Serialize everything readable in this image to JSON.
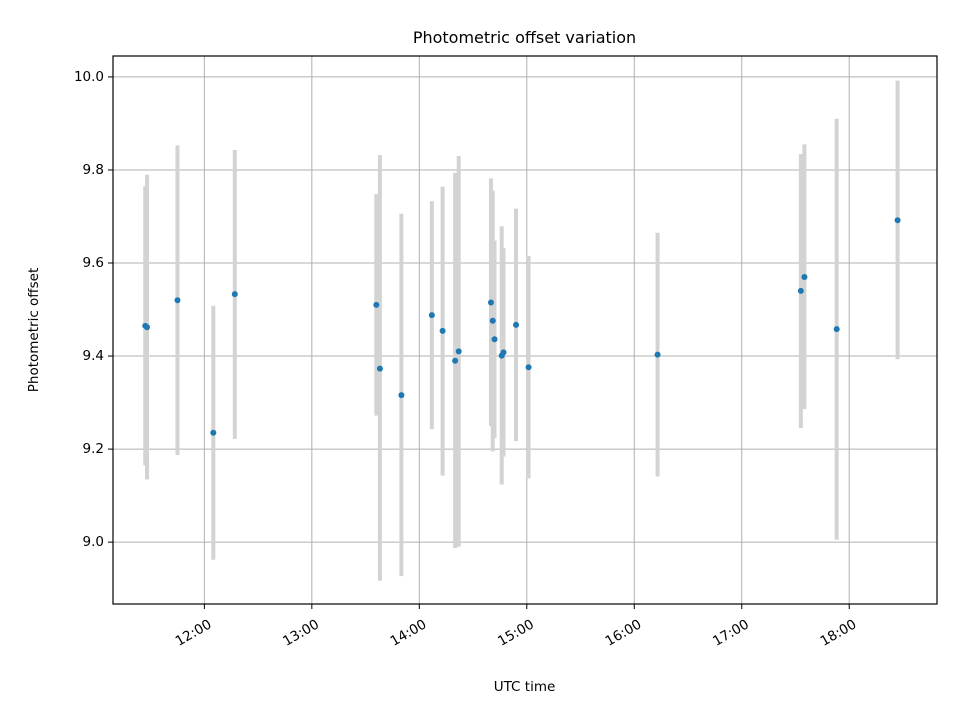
{
  "chart_data": {
    "type": "scatter",
    "title": "Photometric offset variation",
    "xlabel": "UTC time",
    "ylabel": "Photometric offset",
    "x_type": "time",
    "xlim": [
      "11:09",
      "18:49"
    ],
    "ylim": [
      8.867,
      10.045
    ],
    "x_ticks": [
      "12:00",
      "13:00",
      "14:00",
      "15:00",
      "16:00",
      "17:00",
      "18:00"
    ],
    "y_ticks": [
      9.0,
      9.2,
      9.4,
      9.6,
      9.8,
      10.0
    ],
    "grid": true,
    "colors": {
      "point": "#1f77b4",
      "errorbar": "#d3d3d3",
      "grid": "#b0b0b0"
    },
    "points": [
      {
        "x": "11:27",
        "y": 9.465,
        "ylow": 9.165,
        "yhigh": 9.765
      },
      {
        "x": "11:28",
        "y": 9.462,
        "ylow": 9.135,
        "yhigh": 9.79
      },
      {
        "x": "11:45",
        "y": 9.52,
        "ylow": 9.187,
        "yhigh": 9.853
      },
      {
        "x": "12:05",
        "y": 9.235,
        "ylow": 8.962,
        "yhigh": 9.508
      },
      {
        "x": "12:17",
        "y": 9.533,
        "ylow": 9.222,
        "yhigh": 9.843
      },
      {
        "x": "13:36",
        "y": 9.51,
        "ylow": 9.272,
        "yhigh": 9.748
      },
      {
        "x": "13:38",
        "y": 9.373,
        "ylow": 8.917,
        "yhigh": 9.832
      },
      {
        "x": "13:50",
        "y": 9.316,
        "ylow": 8.927,
        "yhigh": 9.706
      },
      {
        "x": "14:07",
        "y": 9.488,
        "ylow": 9.243,
        "yhigh": 9.733
      },
      {
        "x": "14:13",
        "y": 9.454,
        "ylow": 9.143,
        "yhigh": 9.764
      },
      {
        "x": "14:20",
        "y": 9.39,
        "ylow": 8.987,
        "yhigh": 9.794
      },
      {
        "x": "14:22",
        "y": 9.41,
        "ylow": 8.99,
        "yhigh": 9.83
      },
      {
        "x": "14:40",
        "y": 9.515,
        "ylow": 9.249,
        "yhigh": 9.782
      },
      {
        "x": "14:41",
        "y": 9.476,
        "ylow": 9.195,
        "yhigh": 9.756
      },
      {
        "x": "14:42",
        "y": 9.436,
        "ylow": 9.224,
        "yhigh": 9.648
      },
      {
        "x": "14:46",
        "y": 9.401,
        "ylow": 9.124,
        "yhigh": 9.679
      },
      {
        "x": "14:47",
        "y": 9.408,
        "ylow": 9.184,
        "yhigh": 9.632
      },
      {
        "x": "14:54",
        "y": 9.467,
        "ylow": 9.217,
        "yhigh": 9.717
      },
      {
        "x": "15:01",
        "y": 9.376,
        "ylow": 9.137,
        "yhigh": 9.615
      },
      {
        "x": "16:13",
        "y": 9.403,
        "ylow": 9.141,
        "yhigh": 9.665
      },
      {
        "x": "17:33",
        "y": 9.54,
        "ylow": 9.245,
        "yhigh": 9.834
      },
      {
        "x": "17:35",
        "y": 9.57,
        "ylow": 9.286,
        "yhigh": 9.855
      },
      {
        "x": "17:53",
        "y": 9.458,
        "ylow": 9.005,
        "yhigh": 9.91
      },
      {
        "x": "18:27",
        "y": 9.692,
        "ylow": 9.393,
        "yhigh": 9.992
      }
    ]
  }
}
